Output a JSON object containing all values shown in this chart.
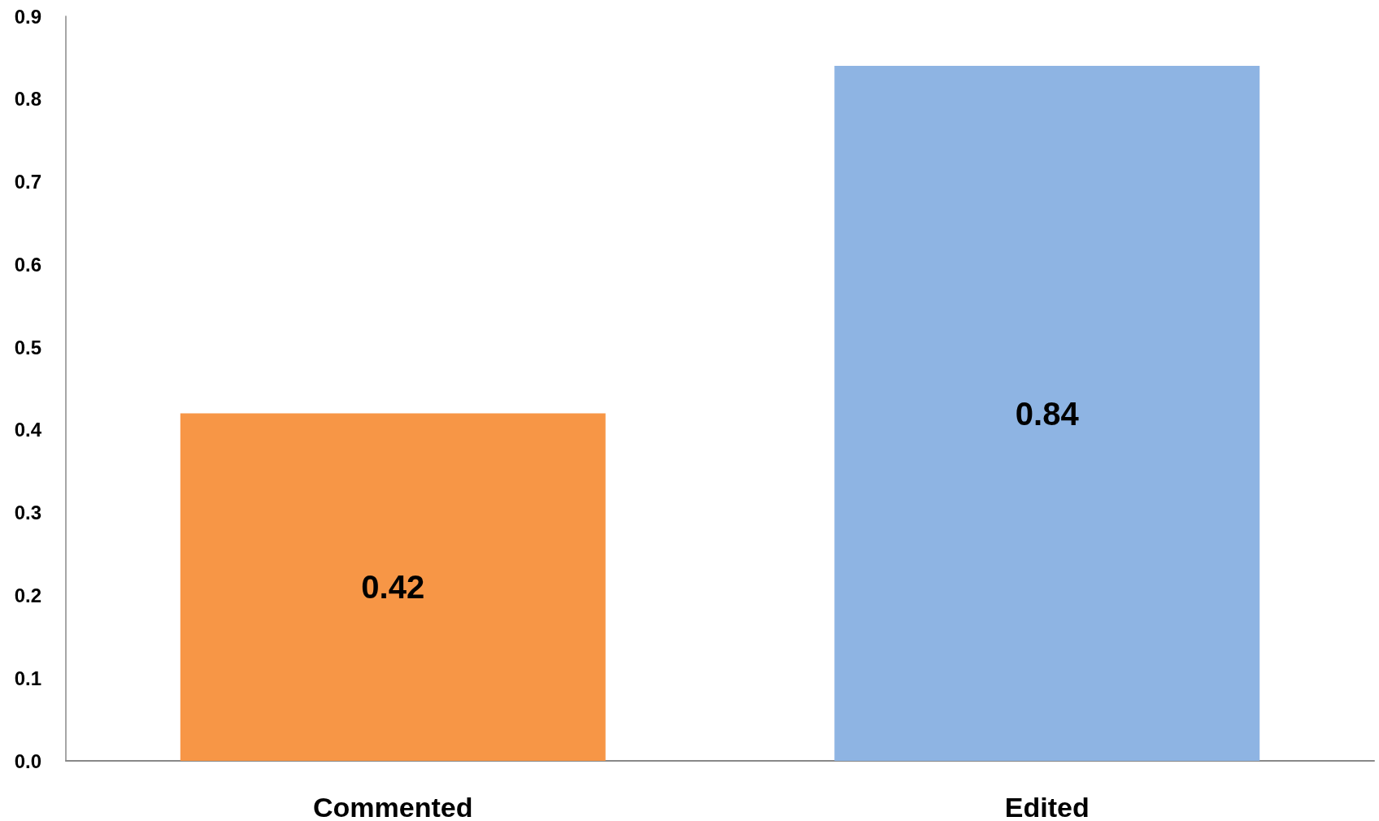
{
  "chart_data": {
    "type": "bar",
    "categories": [
      "Commented",
      "Edited"
    ],
    "values": [
      0.42,
      0.84
    ],
    "colors": [
      "#f79646",
      "#8eb4e3"
    ],
    "ylim": [
      0,
      0.9
    ],
    "yticks": [
      {
        "value": 0,
        "label": "0.0"
      },
      {
        "value": 0.1,
        "label": "0.1"
      },
      {
        "value": 0.2,
        "label": "0.2"
      },
      {
        "value": 0.3,
        "label": "0.3"
      },
      {
        "value": 0.4,
        "label": "0.4"
      },
      {
        "value": 0.5,
        "label": "0.5"
      },
      {
        "value": 0.6,
        "label": "0.6"
      },
      {
        "value": 0.7,
        "label": "0.7"
      },
      {
        "value": 0.8,
        "label": "0.8"
      },
      {
        "value": 0.9,
        "label": "0.9"
      }
    ],
    "data_labels": true,
    "grid": false
  }
}
